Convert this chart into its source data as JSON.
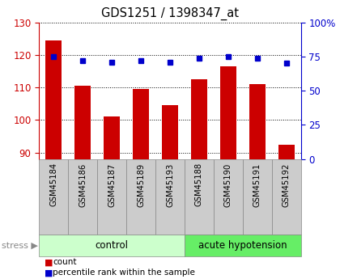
{
  "title": "GDS1251 / 1398347_at",
  "samples": [
    "GSM45184",
    "GSM45186",
    "GSM45187",
    "GSM45189",
    "GSM45193",
    "GSM45188",
    "GSM45190",
    "GSM45191",
    "GSM45192"
  ],
  "bar_values": [
    124.5,
    110.5,
    101.0,
    109.5,
    104.5,
    112.5,
    116.5,
    111.0,
    92.5
  ],
  "dot_values": [
    75.0,
    72.0,
    70.5,
    72.0,
    71.0,
    74.0,
    75.0,
    73.5,
    70.0
  ],
  "ylim_left": [
    88,
    130
  ],
  "ylim_right": [
    0,
    100
  ],
  "yticks_left": [
    90,
    100,
    110,
    120,
    130
  ],
  "yticks_right": [
    0,
    25,
    50,
    75,
    100
  ],
  "bar_color": "#cc0000",
  "dot_color": "#0000cc",
  "n_control": 5,
  "n_acute": 4,
  "control_label": "control",
  "acute_label": "acute hypotension",
  "stress_label": "stress",
  "group_bg_light": "#ccffcc",
  "group_bg_bright": "#66ee66",
  "xlabel_bg": "#cccccc",
  "legend_count": "count",
  "legend_pct": "percentile rank within the sample",
  "title_color": "#000000",
  "left_axis_color": "#cc0000",
  "right_axis_color": "#0000cc"
}
